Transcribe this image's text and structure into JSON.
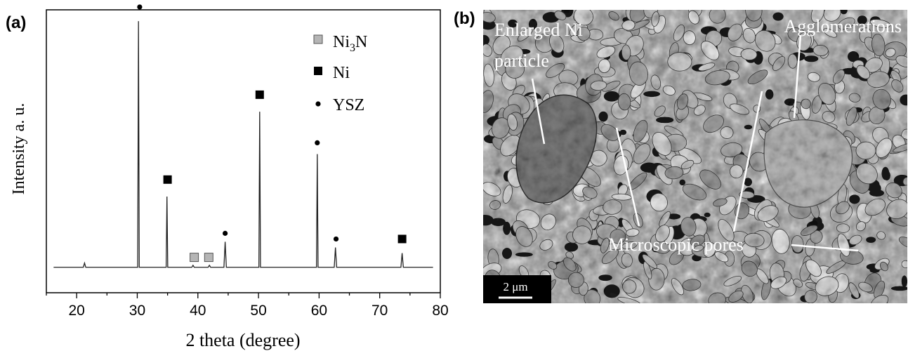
{
  "panels": {
    "a": {
      "label": "(a)"
    },
    "b": {
      "label": "(b)"
    }
  },
  "chart_data": {
    "type": "line",
    "title": "",
    "xlabel": "2 theta (degree)",
    "ylabel": "Intensity a. u.",
    "xlim": [
      15,
      80
    ],
    "ylim": [
      0,
      100
    ],
    "xticks": [
      20,
      30,
      40,
      50,
      60,
      70,
      80
    ],
    "y_tick_labels": false,
    "grid": false,
    "baseline": 9,
    "series": [
      {
        "values": [
          {
            "x": 21.3,
            "y": 10.5
          },
          {
            "x": 30.2,
            "y": 96
          },
          {
            "x": 34.9,
            "y": 34
          },
          {
            "x": 39.2,
            "y": 9.7
          },
          {
            "x": 41.9,
            "y": 9.7
          },
          {
            "x": 44.5,
            "y": 18
          },
          {
            "x": 50.2,
            "y": 64
          },
          {
            "x": 59.7,
            "y": 49
          },
          {
            "x": 62.7,
            "y": 16
          },
          {
            "x": 73.7,
            "y": 14
          }
        ]
      }
    ],
    "markers": [
      {
        "phase": "YSZ",
        "x": 30.4,
        "y": 101
      },
      {
        "phase": "Ni",
        "x": 35.0,
        "y": 40
      },
      {
        "phase": "Ni3N",
        "x": 39.4,
        "y": 12.5
      },
      {
        "phase": "Ni3N",
        "x": 41.8,
        "y": 12.5
      },
      {
        "phase": "YSZ",
        "x": 44.5,
        "y": 21
      },
      {
        "phase": "Ni",
        "x": 50.2,
        "y": 70
      },
      {
        "phase": "YSZ",
        "x": 59.7,
        "y": 53
      },
      {
        "phase": "YSZ",
        "x": 62.8,
        "y": 19
      },
      {
        "phase": "Ni",
        "x": 73.7,
        "y": 19
      }
    ],
    "legend": {
      "position": "top-right",
      "entries": [
        {
          "key": "Ni3N",
          "main": "Ni",
          "sub": "3",
          "tail": "N",
          "marker": "gray-square"
        },
        {
          "key": "Ni",
          "main": "Ni",
          "sub": "",
          "tail": "",
          "marker": "black-square"
        },
        {
          "key": "YSZ",
          "main": "YSZ",
          "sub": "",
          "tail": "",
          "marker": "black-dot"
        }
      ]
    }
  },
  "micrograph": {
    "annotations": [
      {
        "text": "Enlarged Ni"
      },
      {
        "text": "particle"
      },
      {
        "text": "Agglomerations"
      },
      {
        "text": "Microscopic pores"
      }
    ],
    "scale_bar": {
      "label": "2 μm"
    }
  },
  "colors": {
    "line": "#222222",
    "ni3n_marker": "#b5b5b5",
    "ni_marker": "#000000",
    "micrograph_bg": "#8a8a8a",
    "grain": "#c4c4c4",
    "pore": "#1a1a1a",
    "annotation": "#ffffff"
  }
}
